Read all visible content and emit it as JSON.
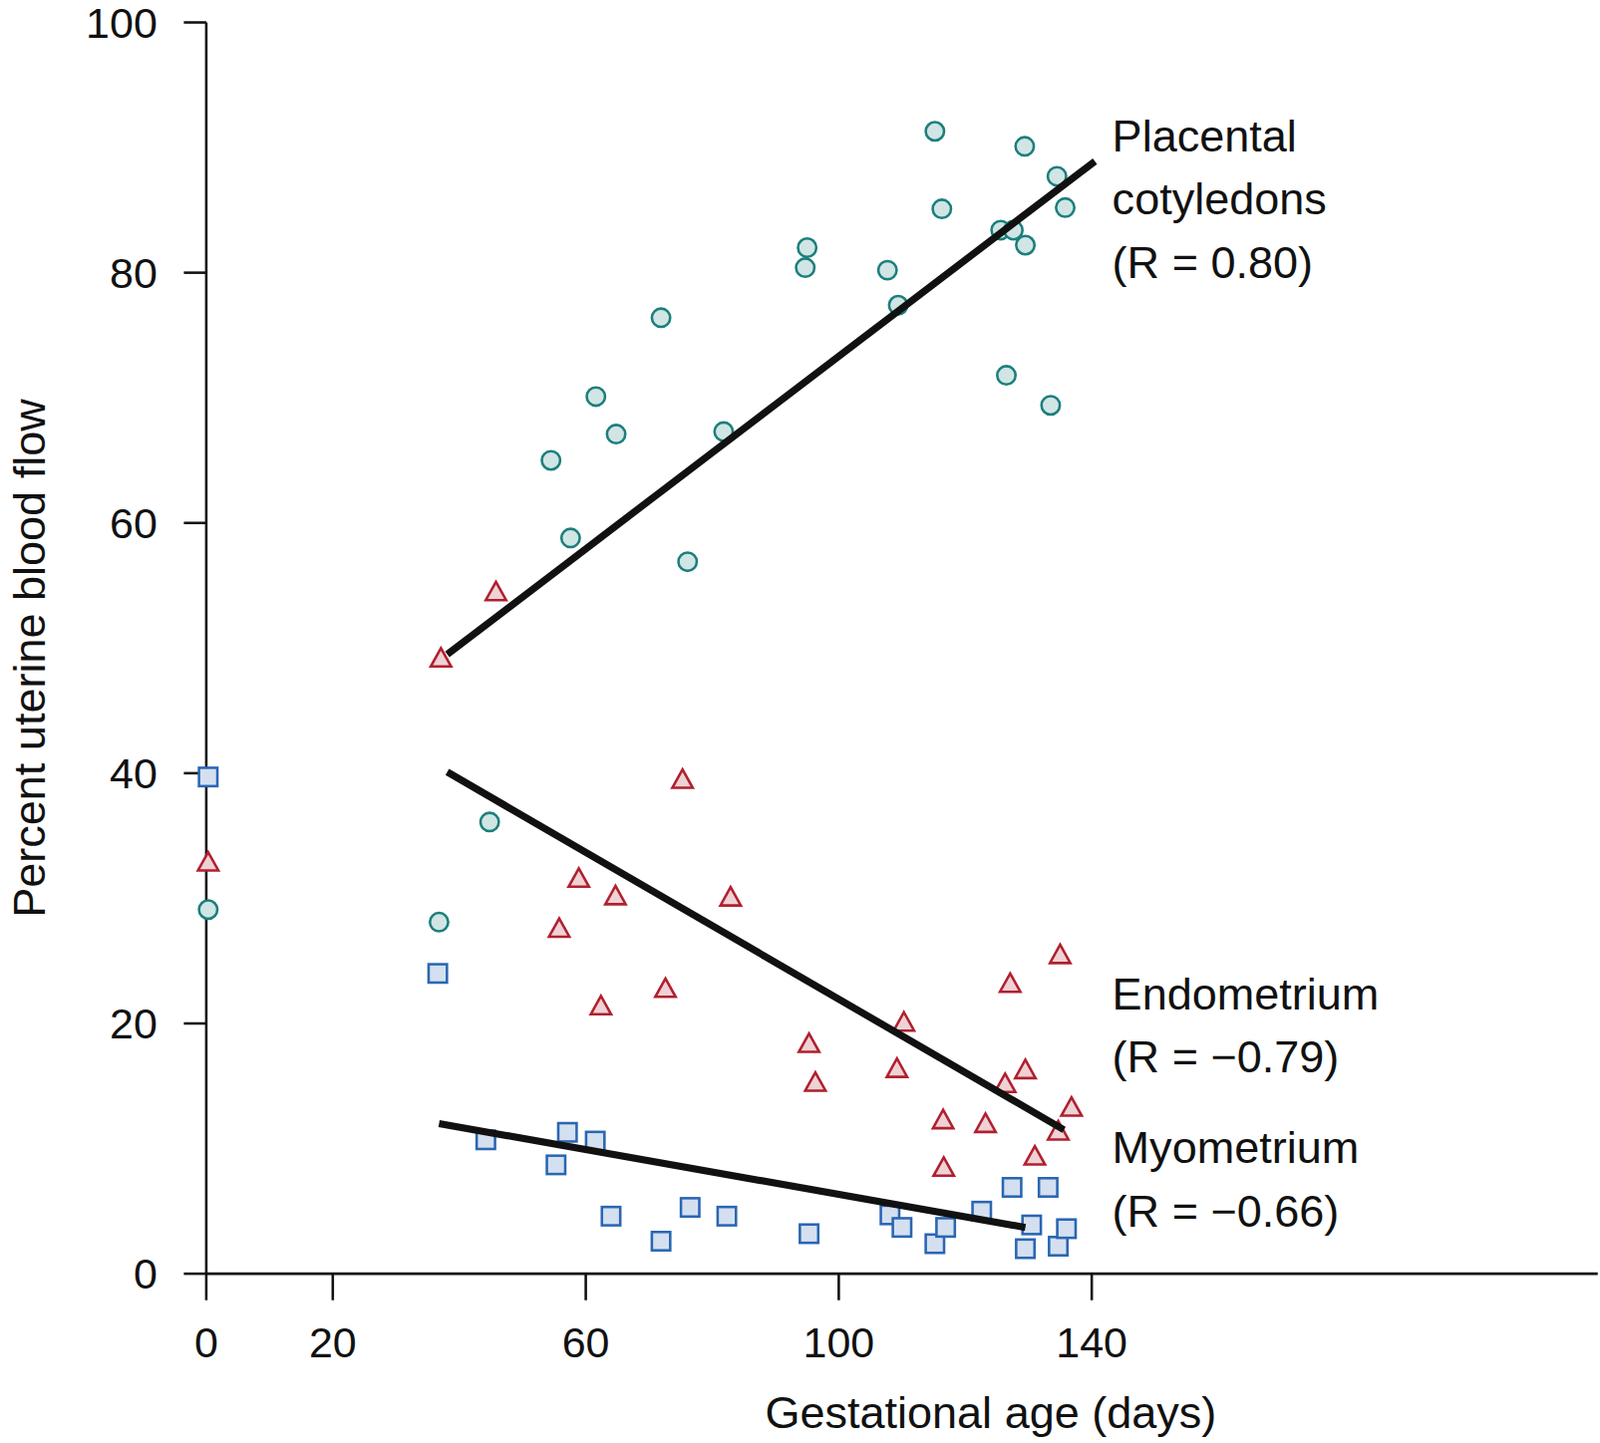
{
  "chart_data": {
    "type": "scatter",
    "x_label": "Gestational age (days)",
    "y_label": "Percent uterine blood flow",
    "xlim": [
      0,
      220
    ],
    "ylim": [
      0,
      100
    ],
    "xticks": [
      0,
      20,
      60,
      100,
      140
    ],
    "yticks": [
      0,
      20,
      40,
      60,
      80,
      100
    ],
    "grid": false,
    "series": [
      {
        "name": "Placental cotyledons",
        "type": "scatter",
        "marker": "circle",
        "color": "#1b7f7c",
        "x": [
          0.3,
          36.8,
          44.8,
          54.5,
          57.6,
          61.6,
          64.8,
          71.9,
          76.1,
          81.8,
          94.7,
          95,
          107.7,
          109.4,
          115.2,
          116.3,
          125.6,
          127.6,
          126.5,
          129.4,
          129.5,
          133.5,
          134.5,
          135.8
        ],
        "values": [
          29.1,
          28.1,
          36.1,
          65,
          58.8,
          70.1,
          67.1,
          76.4,
          56.9,
          67.3,
          80.4,
          82,
          80.2,
          77.4,
          91.3,
          85.1,
          83.4,
          83.4,
          71.8,
          90.1,
          82.2,
          69.4,
          87.7,
          85.2
        ]
      },
      {
        "name": "Endometrium",
        "type": "scatter",
        "marker": "triangle",
        "color": "#b0202e",
        "x": [
          0.3,
          37.1,
          45.8,
          55.8,
          58.9,
          62.4,
          64.7,
          72.6,
          75.3,
          82.9,
          95.3,
          96.3,
          109.2,
          110.3,
          116.5,
          116.6,
          123.2,
          126.3,
          127.1,
          129.5,
          131,
          134.7,
          135,
          136.8
        ],
        "values": [
          32.8,
          49.1,
          54.4,
          27.5,
          31.5,
          21.3,
          30.1,
          22.7,
          39.4,
          30,
          18.3,
          15.2,
          16.3,
          20,
          12.2,
          8.4,
          11.9,
          15.1,
          23.1,
          16.2,
          9.3,
          11.3,
          25.4,
          13.2
        ]
      },
      {
        "name": "Myometrium",
        "type": "scatter",
        "marker": "square",
        "color": "#2a66b3",
        "x": [
          0.3,
          36.6,
          44.2,
          55.3,
          57.1,
          61.5,
          64,
          71.9,
          76.5,
          82.3,
          95.3,
          108.1,
          110,
          115.2,
          116.9,
          122.6,
          127.4,
          129.5,
          130.5,
          133.1,
          134.7,
          136
        ],
        "values": [
          39.7,
          24,
          10.7,
          8.7,
          11.3,
          10.6,
          4.6,
          2.6,
          5.3,
          4.6,
          3.2,
          4.7,
          3.7,
          2.4,
          3.7,
          5,
          6.9,
          2,
          3.9,
          6.9,
          2.2,
          3.6
        ]
      },
      {
        "name": "(R = 0.80)",
        "type": "line",
        "color": "#111111",
        "x": [
          38.1,
          140.5
        ],
        "values": [
          49.5,
          88.9
        ]
      },
      {
        "name": "(R = −0.79)",
        "type": "line",
        "color": "#111111",
        "x": [
          38.1,
          135.6
        ],
        "values": [
          40.1,
          11.5
        ]
      },
      {
        "name": "(R = −0.66)",
        "type": "line",
        "color": "#111111",
        "x": [
          36.8,
          129.5
        ],
        "values": [
          12,
          3.7
        ]
      }
    ]
  }
}
